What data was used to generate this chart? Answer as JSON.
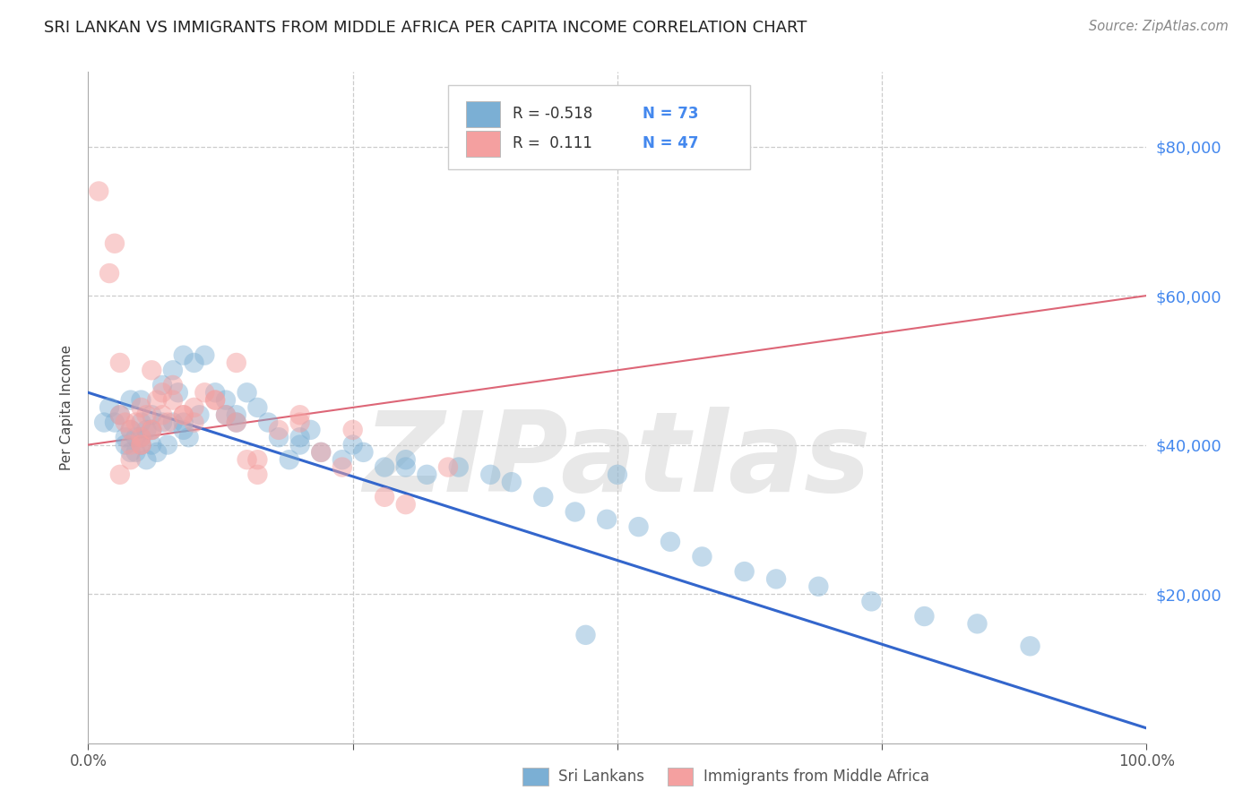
{
  "title": "SRI LANKAN VS IMMIGRANTS FROM MIDDLE AFRICA PER CAPITA INCOME CORRELATION CHART",
  "source": "Source: ZipAtlas.com",
  "ylabel": "Per Capita Income",
  "xlim": [
    0,
    1.0
  ],
  "ylim": [
    0,
    90000
  ],
  "ytick_vals": [
    20000,
    40000,
    60000,
    80000
  ],
  "ytick_labels": [
    "$20,000",
    "$40,000",
    "$60,000",
    "$80,000"
  ],
  "xtick_vals": [
    0.0,
    0.25,
    0.5,
    0.75,
    1.0
  ],
  "xtick_labels": [
    "0.0%",
    "",
    "",
    "",
    "100.0%"
  ],
  "grid_color": "#cccccc",
  "bg_color": "#ffffff",
  "blue_dot_color": "#7BAFD4",
  "pink_dot_color": "#F4A0A0",
  "blue_line_color": "#3366CC",
  "pink_line_color": "#DD6677",
  "axis_color": "#aaaaaa",
  "blue_r": "-0.518",
  "blue_n": "73",
  "pink_r": "0.111",
  "pink_n": "47",
  "label_blue": "Sri Lankans",
  "label_pink": "Immigrants from Middle Africa",
  "watermark": "ZIPatlas",
  "blue_x": [
    0.015,
    0.02,
    0.025,
    0.03,
    0.035,
    0.035,
    0.04,
    0.04,
    0.045,
    0.045,
    0.05,
    0.05,
    0.05,
    0.055,
    0.055,
    0.06,
    0.06,
    0.065,
    0.07,
    0.07,
    0.075,
    0.08,
    0.085,
    0.09,
    0.09,
    0.095,
    0.1,
    0.105,
    0.11,
    0.12,
    0.13,
    0.14,
    0.15,
    0.16,
    0.17,
    0.18,
    0.19,
    0.2,
    0.21,
    0.22,
    0.24,
    0.26,
    0.28,
    0.3,
    0.32,
    0.35,
    0.38,
    0.4,
    0.43,
    0.46,
    0.49,
    0.52,
    0.55,
    0.58,
    0.62,
    0.65,
    0.69,
    0.74,
    0.79,
    0.84,
    0.89,
    0.5,
    0.47,
    0.3,
    0.2,
    0.25,
    0.13,
    0.08,
    0.06,
    0.05,
    0.04,
    0.09,
    0.14
  ],
  "blue_y": [
    43000,
    45000,
    43000,
    44000,
    41000,
    40000,
    46000,
    42000,
    41000,
    39000,
    46000,
    43000,
    40000,
    42000,
    38000,
    44000,
    40000,
    39000,
    48000,
    43000,
    40000,
    50000,
    47000,
    52000,
    43000,
    41000,
    51000,
    44000,
    52000,
    47000,
    46000,
    44000,
    47000,
    45000,
    43000,
    41000,
    38000,
    40000,
    42000,
    39000,
    38000,
    39000,
    37000,
    38000,
    36000,
    37000,
    36000,
    35000,
    33000,
    31000,
    30000,
    29000,
    27000,
    25000,
    23000,
    22000,
    21000,
    19000,
    17000,
    16000,
    13000,
    36000,
    14500,
    37000,
    41000,
    40000,
    44000,
    43000,
    42000,
    41000,
    39000,
    42000,
    43000
  ],
  "pink_x": [
    0.01,
    0.02,
    0.025,
    0.03,
    0.03,
    0.035,
    0.04,
    0.04,
    0.045,
    0.05,
    0.05,
    0.055,
    0.06,
    0.065,
    0.07,
    0.075,
    0.08,
    0.09,
    0.1,
    0.11,
    0.12,
    0.13,
    0.14,
    0.15,
    0.16,
    0.18,
    0.2,
    0.22,
    0.24,
    0.28,
    0.34,
    0.05,
    0.06,
    0.08,
    0.1,
    0.14,
    0.16,
    0.2,
    0.25,
    0.3,
    0.12,
    0.09,
    0.07,
    0.06,
    0.05,
    0.04,
    0.03
  ],
  "pink_y": [
    74000,
    63000,
    67000,
    51000,
    44000,
    43000,
    42000,
    40000,
    43000,
    45000,
    41000,
    44000,
    50000,
    46000,
    47000,
    43000,
    48000,
    44000,
    45000,
    47000,
    46000,
    44000,
    43000,
    38000,
    38000,
    42000,
    43000,
    39000,
    37000,
    33000,
    37000,
    40000,
    42000,
    46000,
    43000,
    51000,
    36000,
    44000,
    42000,
    32000,
    46000,
    44000,
    44000,
    42000,
    40000,
    38000,
    36000
  ],
  "blue_trend_x0": 0.0,
  "blue_trend_x1": 1.0,
  "blue_trend_y0": 47000,
  "blue_trend_y1": 2000,
  "pink_trend_x0": 0.0,
  "pink_trend_x1": 1.0,
  "pink_trend_y0": 40000,
  "pink_trend_y1": 60000
}
